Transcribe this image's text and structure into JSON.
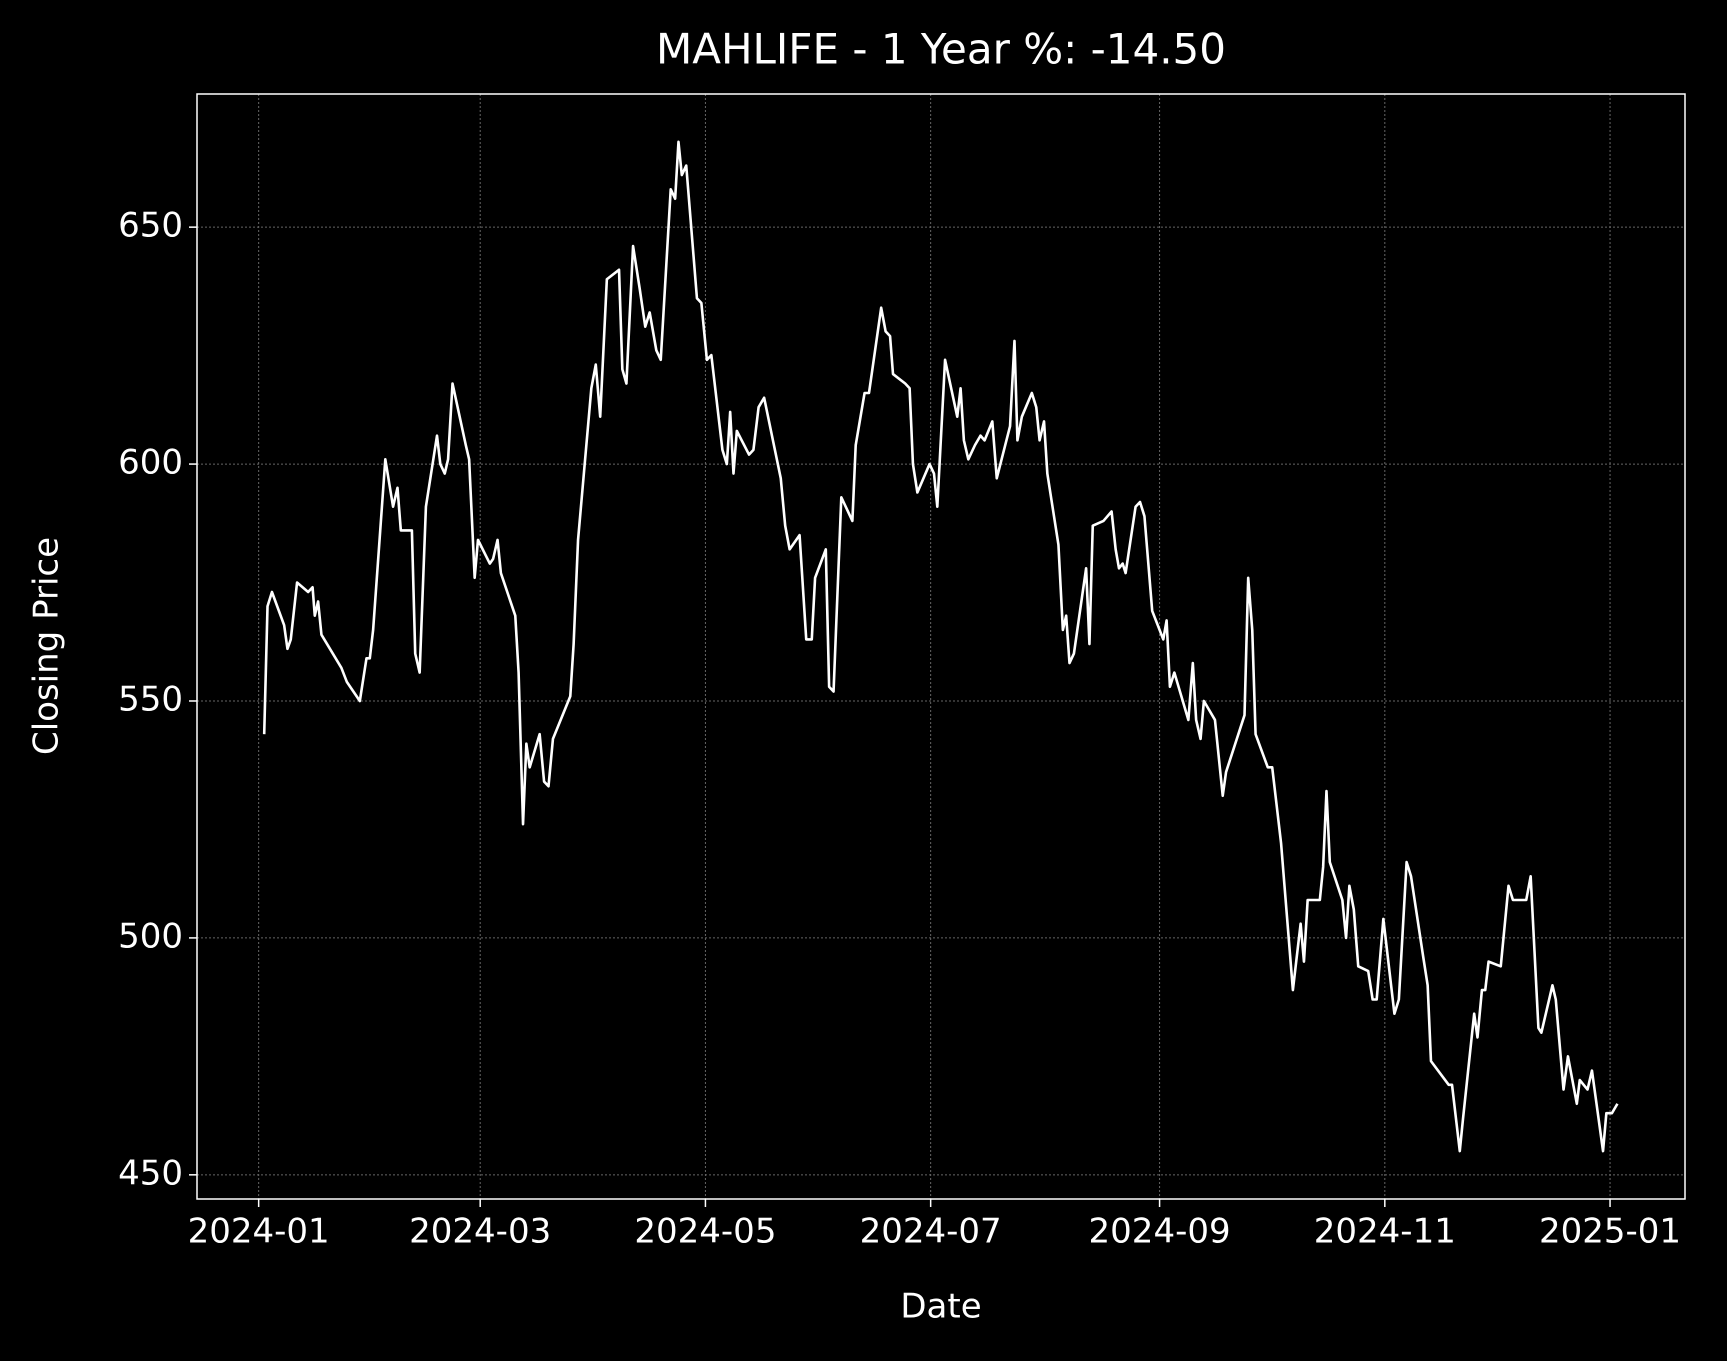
{
  "chart_data": {
    "type": "line",
    "title": "MAHLIFE - 1 Year %: -14.50",
    "xlabel": "Date",
    "ylabel": "Closing Price",
    "color": "#ffffff",
    "grid": true,
    "xlim": [
      -16.7,
      386.3
    ],
    "xticks": [
      {
        "value": 0,
        "label": "2024-01"
      },
      {
        "value": 60,
        "label": "2024-03"
      },
      {
        "value": 121,
        "label": "2024-05"
      },
      {
        "value": 182,
        "label": "2024-07"
      },
      {
        "value": 244,
        "label": "2024-09"
      },
      {
        "value": 305,
        "label": "2024-11"
      },
      {
        "value": 366,
        "label": "2025-01"
      }
    ],
    "ylim": [
      444.9,
      678.1
    ],
    "yticks": [
      450,
      500,
      550,
      600,
      650
    ],
    "x": [
      1.5,
      2.4,
      3.6,
      6.9,
      7.8,
      8.7,
      10.4,
      13.4,
      14.6,
      15.2,
      16.1,
      17,
      22.4,
      23.9,
      27.4,
      29.2,
      30.1,
      31,
      34.3,
      36.4,
      37.6,
      38.5,
      41.5,
      42.4,
      43.6,
      45.3,
      48.3,
      49.2,
      50.4,
      51.3,
      52.5,
      56.1,
      57,
      58.5,
      59.4,
      62.6,
      63.5,
      64.7,
      65.6,
      69.5,
      70.4,
      71.6,
      72.5,
      73.4,
      76.1,
      77.3,
      78.5,
      79.7,
      84.4,
      85.3,
      86.5,
      90.1,
      91.3,
      92.5,
      94.3,
      97.6,
      98.5,
      99.6,
      101.4,
      103.2,
      104.7,
      105.9,
      107.7,
      108.9,
      111.6,
      112.8,
      113.7,
      114.6,
      115.8,
      118.7,
      119.9,
      121.4,
      122.6,
      125.6,
      126.8,
      127.7,
      128.6,
      129.5,
      132.8,
      134,
      135.4,
      136.9,
      141.4,
      142.6,
      143.8,
      146.5,
      148.3,
      149.8,
      150.7,
      153.6,
      154.5,
      155.7,
      157.8,
      160.8,
      161.7,
      164.1,
      165.3,
      168.6,
      169.8,
      171,
      171.8,
      175.1,
      176.3,
      177.2,
      178.4,
      181.7,
      182.9,
      183.8,
      185.9,
      189.2,
      190.1,
      191,
      192.2,
      194,
      195.5,
      196.6,
      198.7,
      199.9,
      203.5,
      204.7,
      205.5,
      206.7,
      209.4,
      210.6,
      211.5,
      212.7,
      213.6,
      216.6,
      217.8,
      218.7,
      219.6,
      220.8,
      224.1,
      225,
      225.9,
      228.8,
      231,
      232.1,
      233,
      234,
      234.8,
      237.5,
      238.7,
      239.9,
      242,
      245,
      245.9,
      246.8,
      248,
      251.8,
      253,
      253.9,
      255.1,
      256,
      259,
      261.1,
      262,
      267,
      268,
      269.1,
      270,
      273.3,
      274.5,
      276.9,
      280.1,
      281.3,
      282.2,
      283.1,
      284.1,
      287.4,
      288.3,
      289.2,
      290.1,
      293.5,
      294.5,
      295.4,
      296.6,
      297.8,
      300.5,
      301.7,
      302.8,
      304.6,
      307.6,
      308.8,
      310.9,
      312.1,
      315.4,
      316.6,
      317.5,
      322.3,
      323.2,
      325.3,
      326.2,
      329.2,
      330.1,
      331.3,
      332.2,
      333.1,
      336.4,
      338.5,
      339.7,
      343.3,
      344.5,
      346.6,
      347.4,
      350.4,
      351.3,
      353.4,
      354.6,
      357,
      357.8,
      359.9,
      361.1,
      364.1,
      365,
      366.5,
      368
    ],
    "values": [
      543,
      570,
      573,
      566,
      561,
      563,
      575,
      573,
      574,
      568,
      571,
      564,
      557,
      554,
      550,
      559,
      559,
      565,
      601,
      591,
      595,
      586,
      586,
      560,
      556,
      591,
      606,
      600,
      598,
      601,
      617,
      604,
      601,
      576,
      584,
      579,
      580,
      584,
      577,
      568,
      556,
      524,
      541,
      536,
      543,
      533,
      532,
      542,
      551,
      562,
      584,
      616,
      621,
      610,
      639,
      641,
      620,
      617,
      646,
      637,
      629,
      632,
      624,
      622,
      658,
      656,
      668,
      661,
      663,
      635,
      634,
      622,
      623,
      603,
      600,
      611,
      598,
      607,
      602,
      603,
      612,
      614,
      597,
      587,
      582,
      585,
      563,
      563,
      576,
      582,
      553,
      552,
      593,
      588,
      604,
      615,
      615,
      633,
      628,
      627,
      619,
      617,
      616,
      600,
      594,
      600,
      598,
      591,
      622,
      610,
      616,
      605,
      601,
      604,
      606,
      605,
      609,
      597,
      608,
      626,
      605,
      610,
      615,
      612,
      605,
      609,
      598,
      583,
      565,
      568,
      558,
      560,
      578,
      562,
      587,
      588,
      590,
      582,
      578,
      579,
      577,
      591,
      592,
      589,
      569,
      563,
      567,
      553,
      556,
      546,
      558,
      546,
      542,
      550,
      546,
      530,
      535,
      547,
      576,
      565,
      543,
      536,
      536,
      520,
      489,
      497,
      503,
      495,
      508,
      508,
      515,
      531,
      516,
      508,
      500,
      511,
      506,
      494,
      493,
      487,
      487,
      504,
      484,
      487,
      516,
      513,
      496,
      490,
      474,
      469,
      469,
      455,
      462,
      484,
      479,
      489,
      489,
      495,
      494,
      511,
      508,
      508,
      513,
      481,
      480,
      490,
      487,
      468,
      475,
      465,
      470,
      468,
      472,
      455,
      463,
      463,
      465
    ]
  }
}
